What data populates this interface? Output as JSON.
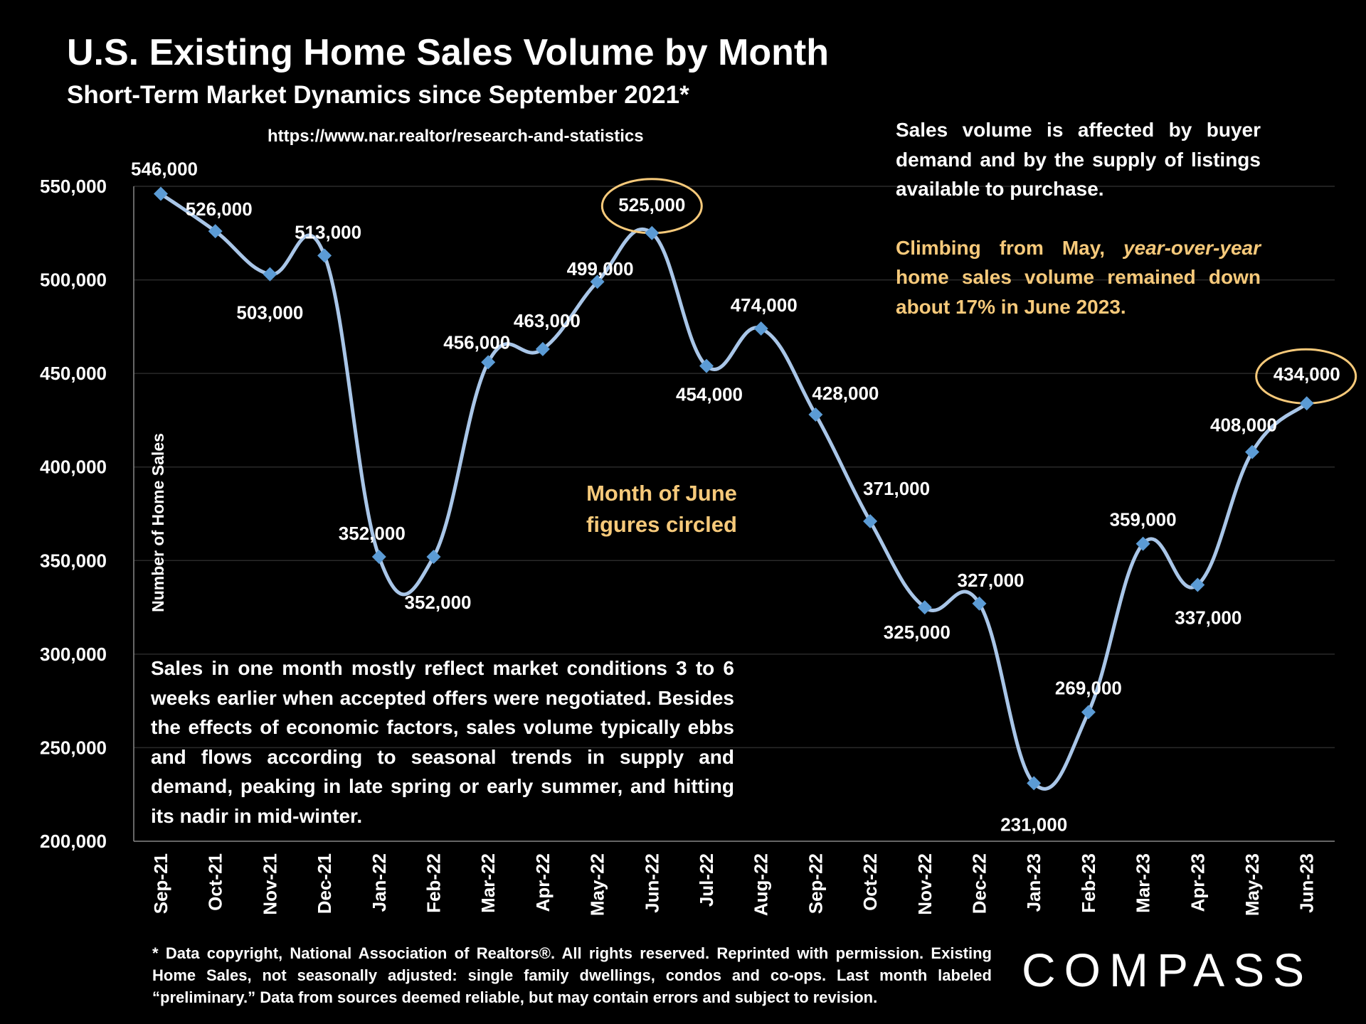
{
  "header": {
    "title": "U.S. Existing Home Sales Volume by Month",
    "subtitle": "Short-Term Market Dynamics since September 2021*",
    "source_url": "https://www.nar.realtor/research-and-statistics"
  },
  "notes": {
    "top_line1": "Sales volume is affected by buyer demand and by the supply of listings available to purchase.",
    "top_line2_a": "Climbing from May, ",
    "top_line2_em": "year-over-year",
    "top_line2_b": " home sales volume remained down about 17% in June 2023.",
    "june_callout_1": "Month of June",
    "june_callout_2": "figures circled",
    "bottom": "Sales in one month mostly reflect market conditions 3 to 6 weeks earlier when accepted offers were negotiated. Besides the effects of economic factors, sales volume typically ebbs and flows according to seasonal trends in supply and demand, peaking in late spring or early summer, and hitting its nadir in mid-winter."
  },
  "footnote": "* Data copyright, National Association of Realtors®. All rights reserved. Reprinted with permission. Existing Home Sales, not seasonally adjusted: single family dwellings, condos and co-ops. Last month labeled “preliminary.” Data from sources deemed reliable, but may contain errors and subject to revision.",
  "logo": "COMPASS",
  "colors": {
    "line": "#a9c6e8",
    "marker": "#5b9bd5",
    "highlight": "#f6c97a",
    "grid": "#2a2a2a"
  },
  "chart_data": {
    "type": "line",
    "title": "U.S. Existing Home Sales Volume by Month",
    "ylabel": "Number of Home Sales",
    "xlabel": "",
    "ylim": [
      200000,
      550000
    ],
    "yticks": [
      200000,
      250000,
      300000,
      350000,
      400000,
      450000,
      500000,
      550000
    ],
    "ytick_labels": [
      "200,000",
      "250,000",
      "300,000",
      "350,000",
      "400,000",
      "450,000",
      "500,000",
      "550,000"
    ],
    "categories": [
      "Sep-21",
      "Oct-21",
      "Nov-21",
      "Dec-21",
      "Jan-22",
      "Feb-22",
      "Mar-22",
      "Apr-22",
      "May-22",
      "Jun-22",
      "Jul-22",
      "Aug-22",
      "Sep-22",
      "Oct-22",
      "Nov-22",
      "Dec-22",
      "Jan-23",
      "Feb-23",
      "Mar-23",
      "Apr-23",
      "May-23",
      "Jun-23"
    ],
    "values": [
      546000,
      526000,
      503000,
      513000,
      352000,
      352000,
      456000,
      463000,
      499000,
      525000,
      454000,
      474000,
      428000,
      371000,
      325000,
      327000,
      231000,
      269000,
      359000,
      337000,
      408000,
      434000
    ],
    "value_labels": [
      "546,000",
      "526,000",
      "503,000",
      "513,000",
      "352,000",
      "352,000",
      "456,000",
      "463,000",
      "499,000",
      "525,000",
      "454,000",
      "474,000",
      "428,000",
      "371,000",
      "325,000",
      "327,000",
      "231,000",
      "269,000",
      "359,000",
      "337,000",
      "408,000",
      "434,000"
    ],
    "circled": [
      "Jun-22",
      "Jun-23"
    ],
    "grid": true
  }
}
